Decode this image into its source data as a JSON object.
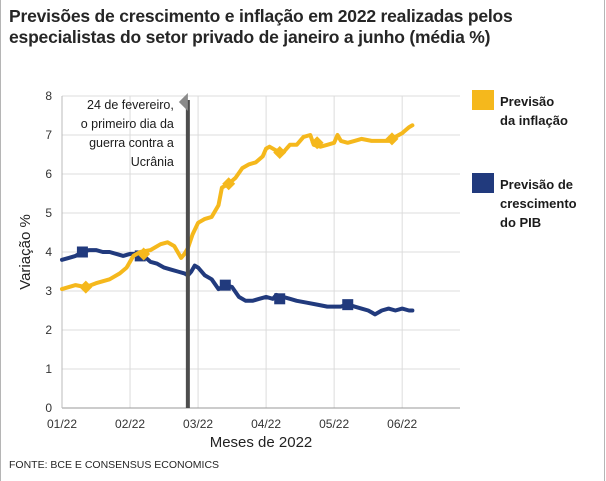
{
  "title": "Previsões de crescimento e inflação em 2022 realizadas pelos especialistas do setor privado de janeiro a junho (média %)",
  "source": "FONTE: BCE E CONSENSUS ECONOMICS",
  "colors": {
    "inflation": "#f5b81c",
    "gdp": "#213a7d",
    "event_line": "#4d4d4d",
    "grid": "#dcdcdc"
  },
  "chart_data": {
    "type": "line",
    "title": "Previsões de crescimento e inflação em 2022 realizadas pelos especialistas do setor privado de janeiro a junho (média %)",
    "xlabel": "Meses de 2022",
    "ylabel": "Variação %",
    "ylim": [
      0,
      8
    ],
    "xlim": [
      0,
      5.85
    ],
    "x_ticks": [
      {
        "pos": 0,
        "label": "01/22"
      },
      {
        "pos": 1,
        "label": "02/22"
      },
      {
        "pos": 2,
        "label": "03/22"
      },
      {
        "pos": 3,
        "label": "04/22"
      },
      {
        "pos": 4,
        "label": "05/22"
      },
      {
        "pos": 5,
        "label": "06/22"
      }
    ],
    "y_ticks": [
      0,
      1,
      2,
      3,
      4,
      5,
      6,
      7,
      8
    ],
    "grid": true,
    "event": {
      "x": 1.85,
      "label": [
        "24 de fevereiro,",
        "o primeiro dia da",
        "guerra contra a",
        "Ucrânia"
      ]
    },
    "series": [
      {
        "name": "Previsão da inflação",
        "legend": [
          "Previsão",
          "da inflação"
        ],
        "color": "#f5b81c",
        "points": [
          [
            0,
            3.05
          ],
          [
            0.1,
            3.1
          ],
          [
            0.2,
            3.15
          ],
          [
            0.35,
            3.1
          ],
          [
            0.5,
            3.2
          ],
          [
            0.7,
            3.3
          ],
          [
            0.85,
            3.45
          ],
          [
            0.95,
            3.6
          ],
          [
            1.05,
            3.9
          ],
          [
            1.15,
            4.0
          ],
          [
            1.3,
            4.05
          ],
          [
            1.45,
            4.2
          ],
          [
            1.55,
            4.25
          ],
          [
            1.65,
            4.15
          ],
          [
            1.75,
            3.85
          ],
          [
            1.8,
            3.95
          ],
          [
            1.85,
            4.1
          ],
          [
            1.92,
            4.45
          ],
          [
            2.0,
            4.75
          ],
          [
            2.1,
            4.85
          ],
          [
            2.2,
            4.9
          ],
          [
            2.3,
            5.2
          ],
          [
            2.35,
            5.65
          ],
          [
            2.45,
            5.75
          ],
          [
            2.55,
            5.9
          ],
          [
            2.65,
            6.15
          ],
          [
            2.75,
            6.25
          ],
          [
            2.85,
            6.3
          ],
          [
            2.95,
            6.45
          ],
          [
            3.0,
            6.65
          ],
          [
            3.05,
            6.7
          ],
          [
            3.15,
            6.6
          ],
          [
            3.25,
            6.55
          ],
          [
            3.35,
            6.75
          ],
          [
            3.45,
            6.75
          ],
          [
            3.55,
            6.95
          ],
          [
            3.65,
            7.0
          ],
          [
            3.7,
            6.75
          ],
          [
            3.8,
            6.7
          ],
          [
            3.9,
            6.75
          ],
          [
            4.0,
            6.8
          ],
          [
            4.05,
            7.0
          ],
          [
            4.1,
            6.85
          ],
          [
            4.2,
            6.8
          ],
          [
            4.3,
            6.85
          ],
          [
            4.4,
            6.9
          ],
          [
            4.55,
            6.85
          ],
          [
            4.7,
            6.85
          ],
          [
            4.8,
            6.85
          ],
          [
            4.9,
            6.95
          ],
          [
            5.0,
            7.05
          ],
          [
            5.1,
            7.2
          ],
          [
            5.15,
            7.25
          ]
        ],
        "markers": [
          [
            0.35,
            3.1
          ],
          [
            1.2,
            3.95
          ],
          [
            2.45,
            5.75
          ],
          [
            3.2,
            6.55
          ],
          [
            3.75,
            6.8
          ],
          [
            4.85,
            6.9
          ]
        ]
      },
      {
        "name": "Previsão de crescimento do PIB",
        "legend": [
          "Previsão de",
          "crescimento",
          "do PIB"
        ],
        "color": "#213a7d",
        "points": [
          [
            0,
            3.8
          ],
          [
            0.1,
            3.85
          ],
          [
            0.2,
            3.9
          ],
          [
            0.3,
            4.0
          ],
          [
            0.4,
            4.05
          ],
          [
            0.5,
            4.05
          ],
          [
            0.6,
            4.0
          ],
          [
            0.7,
            4.0
          ],
          [
            0.8,
            3.95
          ],
          [
            0.9,
            3.9
          ],
          [
            1.0,
            3.95
          ],
          [
            1.1,
            3.95
          ],
          [
            1.2,
            3.9
          ],
          [
            1.3,
            3.75
          ],
          [
            1.4,
            3.7
          ],
          [
            1.5,
            3.6
          ],
          [
            1.6,
            3.55
          ],
          [
            1.7,
            3.5
          ],
          [
            1.8,
            3.45
          ],
          [
            1.85,
            3.4
          ],
          [
            1.9,
            3.5
          ],
          [
            1.95,
            3.65
          ],
          [
            2.0,
            3.6
          ],
          [
            2.1,
            3.4
          ],
          [
            2.2,
            3.3
          ],
          [
            2.3,
            3.05
          ],
          [
            2.4,
            3.15
          ],
          [
            2.5,
            3.1
          ],
          [
            2.6,
            2.85
          ],
          [
            2.7,
            2.75
          ],
          [
            2.8,
            2.75
          ],
          [
            2.9,
            2.8
          ],
          [
            3.0,
            2.85
          ],
          [
            3.1,
            2.8
          ],
          [
            3.15,
            2.9
          ],
          [
            3.25,
            2.85
          ],
          [
            3.35,
            2.8
          ],
          [
            3.45,
            2.75
          ],
          [
            3.6,
            2.7
          ],
          [
            3.75,
            2.65
          ],
          [
            3.9,
            2.6
          ],
          [
            4.0,
            2.6
          ],
          [
            4.1,
            2.6
          ],
          [
            4.2,
            2.65
          ],
          [
            4.3,
            2.6
          ],
          [
            4.4,
            2.55
          ],
          [
            4.5,
            2.5
          ],
          [
            4.55,
            2.45
          ],
          [
            4.6,
            2.4
          ],
          [
            4.7,
            2.5
          ],
          [
            4.8,
            2.55
          ],
          [
            4.9,
            2.5
          ],
          [
            5.0,
            2.55
          ],
          [
            5.1,
            2.5
          ],
          [
            5.15,
            2.5
          ]
        ],
        "markers": [
          [
            0.3,
            4.0
          ],
          [
            1.15,
            3.9
          ],
          [
            2.4,
            3.15
          ],
          [
            3.2,
            2.8
          ],
          [
            4.2,
            2.65
          ]
        ]
      }
    ]
  }
}
